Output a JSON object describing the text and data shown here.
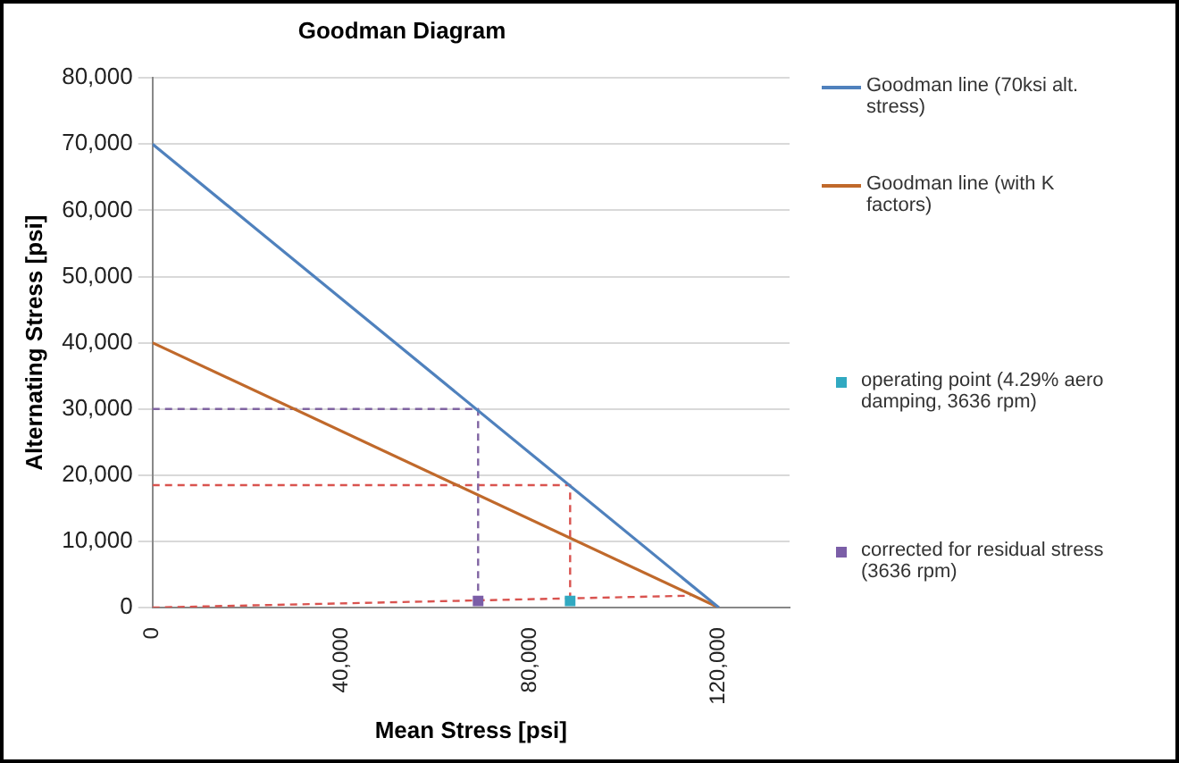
{
  "chart_data": {
    "type": "line",
    "title": "Goodman Diagram",
    "xlabel": "Mean Stress [psi]",
    "ylabel": "Alternating Stress [psi]",
    "xlim": [
      0,
      135000
    ],
    "xticks": [
      {
        "value": 0,
        "label": "0"
      },
      {
        "value": 40000,
        "label": "40,000"
      },
      {
        "value": 80000,
        "label": "80,000"
      },
      {
        "value": 120000,
        "label": "120,000"
      }
    ],
    "ylim": [
      0,
      80000
    ],
    "yticks": [
      {
        "value": 0,
        "label": "0"
      },
      {
        "value": 10000,
        "label": "10,000"
      },
      {
        "value": 20000,
        "label": "20,000"
      },
      {
        "value": 30000,
        "label": "30,000"
      },
      {
        "value": 40000,
        "label": "40,000"
      },
      {
        "value": 50000,
        "label": "50,000"
      },
      {
        "value": 60000,
        "label": "60,000"
      },
      {
        "value": 70000,
        "label": "70,000"
      },
      {
        "value": 80000,
        "label": "80,000"
      }
    ],
    "grid": "y",
    "legend": "right",
    "marker": "none",
    "line_style": "solid",
    "series": [
      {
        "name": "Goodman line (70ksi alt. stress)",
        "color": "#4f81bd",
        "x": [
          0,
          120000
        ],
        "values": [
          70000,
          0
        ]
      },
      {
        "name": "Goodman line (with K factors)",
        "color": "#c0692b",
        "x": [
          0,
          120000
        ],
        "values": [
          40000,
          0
        ]
      },
      {
        "name": "operating point (4.29% aero damping, 3636 rpm)",
        "type": "scatter",
        "marker": "square",
        "color": "#31a9c1",
        "x": [
          88500
        ],
        "values": [
          1000
        ]
      },
      {
        "name": "corrected for residual stress (3636 rpm)",
        "type": "scatter",
        "marker": "square",
        "color": "#7b5ea7",
        "x": [
          69000
        ],
        "values": [
          1000
        ]
      },
      {
        "line_style": "dashed",
        "color": "#8064a2",
        "x": [
          0,
          69000,
          69000
        ],
        "values": [
          30000,
          30000,
          1000
        ]
      },
      {
        "line_style": "dashed",
        "color": "#d9534f",
        "x": [
          0,
          88500,
          88500
        ],
        "values": [
          18500,
          18500,
          1000
        ]
      },
      {
        "line_style": "dashed",
        "color": "#d9534f",
        "x": [
          0,
          114000
        ],
        "values": [
          0,
          1800
        ]
      }
    ]
  }
}
